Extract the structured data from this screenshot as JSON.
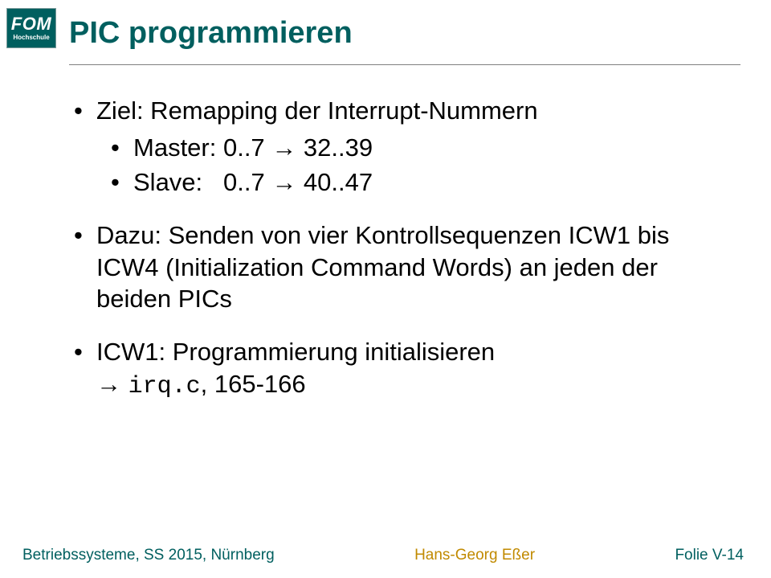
{
  "colors": {
    "brand": "#005f5f",
    "accent": "#c18a00",
    "rule": "#808080",
    "text": "#000000",
    "bg": "#ffffff"
  },
  "typography": {
    "body_family": "Arial, Helvetica, sans-serif",
    "mono_family": "Courier New, Courier, monospace",
    "title_size_pt": 28,
    "body_size_pt": 23,
    "footer_size_pt": 14
  },
  "logo": {
    "text": "FOM",
    "sub": "Hochschule"
  },
  "title": "PIC programmieren",
  "bullets": {
    "b0": {
      "text": "Ziel: Remapping der Interrupt-Nummern",
      "sub": [
        "Master: 0..7 → 32..39",
        "Slave:   0..7 → 40..47"
      ]
    },
    "b1": {
      "text": "Dazu: Senden von vier Kontrollsequenzen ICW1 bis ICW4 (Initialization Command Words) an jeden der beiden PICs"
    },
    "b2": {
      "prefix": "ICW1: Programmierung initialisieren",
      "arrow": "→ ",
      "code": "irq.c",
      "suffix": ", 165-166"
    }
  },
  "footer": {
    "left": "Betriebssysteme, SS 2015, Nürnberg",
    "center": "Hans-Georg Eßer",
    "right": "Folie V-14"
  }
}
